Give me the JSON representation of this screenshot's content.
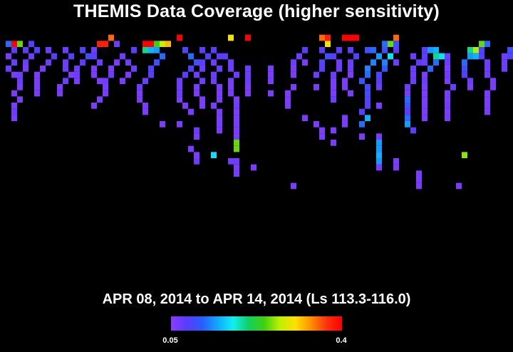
{
  "title": "THEMIS Data Coverage (higher sensitivity)",
  "date_range": "APR 08, 2014 to APR 14, 2014 (Ls 113.3-116.0)",
  "colorbar": {
    "min_label": "0.05",
    "max_label": "0.4",
    "colors": [
      "#8a3cff",
      "#5a3cff",
      "#2a5cff",
      "#10a8ff",
      "#10f0f0",
      "#10d060",
      "#40d010",
      "#c0f000",
      "#ffe000",
      "#ff9000",
      "#ff3010",
      "#ff0000"
    ]
  },
  "chart_data": {
    "type": "heatmap",
    "title": "THEMIS Data Coverage (higher sensitivity)",
    "subtitle": "APR 08, 2014 to APR 14, 2014 (Ls 113.3-116.0)",
    "value_range": [
      0.05,
      0.4
    ],
    "grid": {
      "columns": 90,
      "rows": 30
    },
    "note_units": "cells indexed by column (0-89) and row (0-29); value is sensitivity fraction",
    "cells": [
      [
        1,
        2,
        0.12
      ],
      [
        2,
        2,
        0.4
      ],
      [
        3,
        2,
        0.25
      ],
      [
        2,
        3,
        0.08
      ],
      [
        4,
        3,
        0.08
      ],
      [
        1,
        4,
        0.06
      ],
      [
        2,
        5,
        0.07
      ],
      [
        1,
        6,
        0.07
      ],
      [
        2,
        7,
        0.06
      ],
      [
        3,
        8,
        0.07
      ],
      [
        3,
        9,
        0.06
      ],
      [
        2,
        10,
        0.06
      ],
      [
        3,
        11,
        0.06
      ],
      [
        2,
        12,
        0.06
      ],
      [
        2,
        13,
        0.07
      ],
      [
        2,
        14,
        0.06
      ],
      [
        5,
        2,
        0.08
      ],
      [
        6,
        3,
        0.09
      ],
      [
        5,
        4,
        0.07
      ],
      [
        4,
        5,
        0.07
      ],
      [
        4,
        6,
        0.06
      ],
      [
        3,
        7,
        0.07
      ],
      [
        8,
        3,
        0.07
      ],
      [
        9,
        4,
        0.08
      ],
      [
        8,
        5,
        0.07
      ],
      [
        7,
        6,
        0.06
      ],
      [
        6,
        7,
        0.06
      ],
      [
        6,
        8,
        0.06
      ],
      [
        6,
        9,
        0.06
      ],
      [
        6,
        10,
        0.06
      ],
      [
        11,
        3,
        0.07
      ],
      [
        12,
        4,
        0.08
      ],
      [
        11,
        5,
        0.07
      ],
      [
        11,
        6,
        0.07
      ],
      [
        12,
        7,
        0.06
      ],
      [
        11,
        8,
        0.07
      ],
      [
        10,
        9,
        0.06
      ],
      [
        10,
        10,
        0.06
      ],
      [
        14,
        3,
        0.09
      ],
      [
        15,
        4,
        0.1
      ],
      [
        14,
        5,
        0.08
      ],
      [
        13,
        6,
        0.07
      ],
      [
        13,
        7,
        0.07
      ],
      [
        13,
        8,
        0.06
      ],
      [
        17,
        2,
        0.38
      ],
      [
        18,
        2,
        0.38
      ],
      [
        19,
        1,
        0.35
      ],
      [
        16,
        3,
        0.07
      ],
      [
        16,
        4,
        0.08
      ],
      [
        17,
        5,
        0.07
      ],
      [
        16,
        6,
        0.06
      ],
      [
        16,
        7,
        0.06
      ],
      [
        17,
        8,
        0.06
      ],
      [
        18,
        9,
        0.06
      ],
      [
        18,
        10,
        0.06
      ],
      [
        17,
        11,
        0.06
      ],
      [
        16,
        12,
        0.06
      ],
      [
        20,
        2,
        0.07
      ],
      [
        21,
        4,
        0.07
      ],
      [
        20,
        5,
        0.06
      ],
      [
        19,
        6,
        0.06
      ],
      [
        19,
        7,
        0.07
      ],
      [
        18,
        8,
        0.07
      ],
      [
        23,
        3,
        0.08
      ],
      [
        22,
        5,
        0.07
      ],
      [
        23,
        6,
        0.07
      ],
      [
        22,
        7,
        0.06
      ],
      [
        21,
        8,
        0.06
      ],
      [
        25,
        2,
        0.4
      ],
      [
        26,
        2,
        0.4
      ],
      [
        27,
        2,
        0.24
      ],
      [
        28,
        2,
        0.28
      ],
      [
        29,
        2,
        0.32
      ],
      [
        25,
        3,
        0.2
      ],
      [
        26,
        3,
        0.15
      ],
      [
        27,
        3,
        0.14
      ],
      [
        28,
        4,
        0.12
      ],
      [
        27,
        5,
        0.1
      ],
      [
        26,
        6,
        0.09
      ],
      [
        26,
        7,
        0.08
      ],
      [
        25,
        8,
        0.07
      ],
      [
        24,
        9,
        0.07
      ],
      [
        24,
        10,
        0.06
      ],
      [
        24,
        11,
        0.06
      ],
      [
        25,
        12,
        0.06
      ],
      [
        25,
        13,
        0.06
      ],
      [
        31,
        1,
        0.4
      ],
      [
        32,
        3,
        0.09
      ],
      [
        33,
        4,
        0.12
      ],
      [
        34,
        5,
        0.1
      ],
      [
        33,
        6,
        0.09
      ],
      [
        32,
        7,
        0.08
      ],
      [
        31,
        8,
        0.07
      ],
      [
        31,
        9,
        0.07
      ],
      [
        31,
        10,
        0.07
      ],
      [
        31,
        11,
        0.06
      ],
      [
        32,
        12,
        0.06
      ],
      [
        33,
        13,
        0.06
      ],
      [
        31,
        15,
        0.06
      ],
      [
        28,
        15,
        0.06
      ],
      [
        35,
        3,
        0.08
      ],
      [
        36,
        4,
        0.09
      ],
      [
        35,
        5,
        0.08
      ],
      [
        35,
        6,
        0.07
      ],
      [
        34,
        7,
        0.07
      ],
      [
        35,
        8,
        0.07
      ],
      [
        34,
        9,
        0.06
      ],
      [
        34,
        10,
        0.06
      ],
      [
        35,
        11,
        0.06
      ],
      [
        35,
        12,
        0.06
      ],
      [
        34,
        16,
        0.07
      ],
      [
        34,
        17,
        0.06
      ],
      [
        33,
        19,
        0.06
      ],
      [
        34,
        20,
        0.06
      ],
      [
        34,
        21,
        0.07
      ],
      [
        37,
        3,
        0.08
      ],
      [
        38,
        4,
        0.08
      ],
      [
        37,
        5,
        0.07
      ],
      [
        38,
        6,
        0.07
      ],
      [
        37,
        7,
        0.07
      ],
      [
        37,
        8,
        0.07
      ],
      [
        38,
        9,
        0.06
      ],
      [
        38,
        10,
        0.06
      ],
      [
        38,
        11,
        0.06
      ],
      [
        37,
        12,
        0.06
      ],
      [
        38,
        13,
        0.06
      ],
      [
        38,
        14,
        0.06
      ],
      [
        38,
        15,
        0.06
      ],
      [
        38,
        16,
        0.06
      ],
      [
        37,
        20,
        0.17
      ],
      [
        40,
        1,
        0.3
      ],
      [
        39,
        4,
        0.08
      ],
      [
        40,
        5,
        0.07
      ],
      [
        40,
        6,
        0.07
      ],
      [
        41,
        7,
        0.07
      ],
      [
        40,
        8,
        0.06
      ],
      [
        40,
        9,
        0.06
      ],
      [
        40,
        10,
        0.06
      ],
      [
        41,
        11,
        0.06
      ],
      [
        41,
        12,
        0.07
      ],
      [
        41,
        13,
        0.06
      ],
      [
        41,
        14,
        0.06
      ],
      [
        41,
        15,
        0.06
      ],
      [
        41,
        16,
        0.06
      ],
      [
        41,
        17,
        0.06
      ],
      [
        41,
        18,
        0.25
      ],
      [
        41,
        19,
        0.25
      ],
      [
        40,
        21,
        0.07
      ],
      [
        41,
        21,
        0.07
      ],
      [
        41,
        22,
        0.06
      ],
      [
        41,
        23,
        0.06
      ],
      [
        43,
        1,
        0.4
      ],
      [
        43,
        6,
        0.07
      ],
      [
        43,
        7,
        0.07
      ],
      [
        43,
        8,
        0.07
      ],
      [
        43,
        9,
        0.06
      ],
      [
        43,
        10,
        0.06
      ],
      [
        44,
        22,
        0.06
      ],
      [
        47,
        6,
        0.06
      ],
      [
        47,
        7,
        0.06
      ],
      [
        47,
        8,
        0.06
      ],
      [
        47,
        10,
        0.06
      ],
      [
        52,
        4,
        0.07
      ],
      [
        51,
        5,
        0.07
      ],
      [
        51,
        6,
        0.06
      ],
      [
        51,
        7,
        0.06
      ],
      [
        51,
        9,
        0.06
      ],
      [
        50,
        10,
        0.06
      ],
      [
        50,
        11,
        0.06
      ],
      [
        50,
        12,
        0.06
      ],
      [
        51,
        25,
        0.06
      ],
      [
        53,
        3,
        0.08
      ],
      [
        53,
        5,
        0.06
      ],
      [
        53,
        14,
        0.06
      ],
      [
        57,
        2,
        0.3
      ],
      [
        57,
        2,
        0.3
      ],
      [
        56,
        3,
        0.08
      ],
      [
        57,
        4,
        0.1
      ],
      [
        56,
        5,
        0.09
      ],
      [
        56,
        6,
        0.08
      ],
      [
        55,
        7,
        0.07
      ],
      [
        55,
        9,
        0.06
      ],
      [
        56,
        16,
        0.06
      ],
      [
        56,
        17,
        0.06
      ],
      [
        55,
        15,
        0.06
      ],
      [
        58,
        18,
        0.06
      ],
      [
        58,
        16,
        0.06
      ],
      [
        56,
        1,
        0.35
      ],
      [
        57,
        1,
        0.38
      ],
      [
        60,
        1,
        0.4
      ],
      [
        61,
        1,
        0.4
      ],
      [
        62,
        1,
        0.4
      ],
      [
        59,
        3,
        0.08
      ],
      [
        58,
        4,
        0.08
      ],
      [
        59,
        5,
        0.07
      ],
      [
        59,
        6,
        0.07
      ],
      [
        58,
        7,
        0.07
      ],
      [
        58,
        8,
        0.06
      ],
      [
        58,
        9,
        0.06
      ],
      [
        58,
        10,
        0.06
      ],
      [
        58,
        11,
        0.07
      ],
      [
        61,
        3,
        0.08
      ],
      [
        62,
        4,
        0.09
      ],
      [
        61,
        5,
        0.07
      ],
      [
        61,
        6,
        0.07
      ],
      [
        61,
        7,
        0.06
      ],
      [
        60,
        8,
        0.06
      ],
      [
        60,
        9,
        0.06
      ],
      [
        61,
        10,
        0.06
      ],
      [
        60,
        14,
        0.06
      ],
      [
        60,
        15,
        0.06
      ],
      [
        64,
        3,
        0.1
      ],
      [
        65,
        3,
        0.12
      ],
      [
        66,
        4,
        0.14
      ],
      [
        65,
        5,
        0.13
      ],
      [
        64,
        6,
        0.13
      ],
      [
        64,
        7,
        0.12
      ],
      [
        63,
        8,
        0.11
      ],
      [
        64,
        9,
        0.1
      ],
      [
        64,
        10,
        0.1
      ],
      [
        64,
        11,
        0.09
      ],
      [
        64,
        12,
        0.08
      ],
      [
        63,
        13,
        0.08
      ],
      [
        64,
        14,
        0.15
      ],
      [
        63,
        15,
        0.12
      ],
      [
        63,
        17,
        0.06
      ],
      [
        66,
        18,
        0.14
      ],
      [
        66,
        19,
        0.14
      ],
      [
        66,
        20,
        0.15
      ],
      [
        66,
        21,
        0.14
      ],
      [
        67,
        2,
        0.12
      ],
      [
        68,
        2,
        0.25
      ],
      [
        69,
        1,
        0.35
      ],
      [
        67,
        3,
        0.1
      ],
      [
        68,
        4,
        0.17
      ],
      [
        67,
        5,
        0.13
      ],
      [
        67,
        6,
        0.11
      ],
      [
        66,
        7,
        0.09
      ],
      [
        66,
        8,
        0.08
      ],
      [
        66,
        9,
        0.07
      ],
      [
        66,
        12,
        0.06
      ],
      [
        66,
        17,
        0.06
      ],
      [
        66,
        22,
        0.06
      ],
      [
        69,
        2,
        0.1
      ],
      [
        69,
        3,
        0.08
      ],
      [
        69,
        5,
        0.07
      ],
      [
        69,
        21,
        0.06
      ],
      [
        69,
        22,
        0.06
      ],
      [
        72,
        4,
        0.07
      ],
      [
        73,
        5,
        0.08
      ],
      [
        72,
        6,
        0.07
      ],
      [
        72,
        7,
        0.07
      ],
      [
        72,
        8,
        0.07
      ],
      [
        71,
        9,
        0.07
      ],
      [
        71,
        10,
        0.06
      ],
      [
        71,
        11,
        0.12
      ],
      [
        71,
        12,
        0.1
      ],
      [
        71,
        13,
        0.08
      ],
      [
        71,
        14,
        0.12
      ],
      [
        71,
        15,
        0.14
      ],
      [
        72,
        16,
        0.08
      ],
      [
        73,
        23,
        0.06
      ],
      [
        73,
        24,
        0.06
      ],
      [
        73,
        25,
        0.06
      ],
      [
        74,
        3,
        0.08
      ],
      [
        74,
        4,
        0.08
      ],
      [
        74,
        5,
        0.07
      ],
      [
        75,
        6,
        0.07
      ],
      [
        74,
        7,
        0.06
      ],
      [
        74,
        8,
        0.07
      ],
      [
        74,
        9,
        0.06
      ],
      [
        74,
        10,
        0.06
      ],
      [
        74,
        11,
        0.06
      ],
      [
        74,
        12,
        0.06
      ],
      [
        74,
        13,
        0.06
      ],
      [
        74,
        14,
        0.06
      ],
      [
        75,
        3,
        0.14
      ],
      [
        76,
        3,
        0.15
      ],
      [
        76,
        4,
        0.2
      ],
      [
        77,
        4,
        0.17
      ],
      [
        76,
        5,
        0.12
      ],
      [
        75,
        6,
        0.12
      ],
      [
        78,
        4,
        0.07
      ],
      [
        78,
        5,
        0.07
      ],
      [
        78,
        6,
        0.06
      ],
      [
        78,
        7,
        0.07
      ],
      [
        78,
        8,
        0.06
      ],
      [
        79,
        9,
        0.07
      ],
      [
        78,
        10,
        0.06
      ],
      [
        78,
        11,
        0.06
      ],
      [
        78,
        12,
        0.07
      ],
      [
        78,
        13,
        0.06
      ],
      [
        78,
        14,
        0.06
      ],
      [
        80,
        25,
        0.06
      ],
      [
        82,
        3,
        0.2
      ],
      [
        83,
        3,
        0.27
      ],
      [
        84,
        2,
        0.25
      ],
      [
        82,
        4,
        0.14
      ],
      [
        83,
        4,
        0.15
      ],
      [
        81,
        5,
        0.12
      ],
      [
        81,
        6,
        0.1
      ],
      [
        81,
        7,
        0.08
      ],
      [
        82,
        8,
        0.07
      ],
      [
        82,
        9,
        0.06
      ],
      [
        81,
        20,
        0.26
      ],
      [
        85,
        2,
        0.12
      ],
      [
        84,
        3,
        0.09
      ],
      [
        84,
        4,
        0.08
      ],
      [
        85,
        5,
        0.07
      ],
      [
        85,
        6,
        0.07
      ],
      [
        85,
        7,
        0.07
      ],
      [
        86,
        8,
        0.06
      ],
      [
        86,
        9,
        0.06
      ],
      [
        85,
        10,
        0.06
      ],
      [
        85,
        11,
        0.06
      ],
      [
        85,
        12,
        0.06
      ],
      [
        85,
        13,
        0.06
      ],
      [
        89,
        3,
        0.1
      ],
      [
        89,
        4,
        0.09
      ],
      [
        88,
        4,
        0.07
      ],
      [
        88,
        5,
        0.07
      ],
      [
        88,
        6,
        0.07
      ]
    ]
  }
}
